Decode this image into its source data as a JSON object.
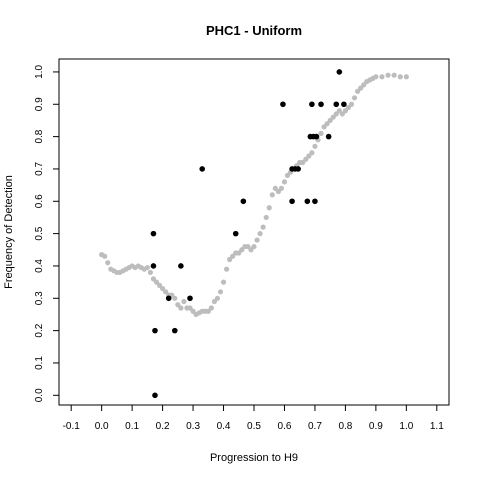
{
  "chart_data": {
    "type": "scatter",
    "title": "PHC1 - Uniform",
    "xlabel": "Progression to H9",
    "ylabel": "Frequency of Detection",
    "xlim": [
      -0.14,
      1.14
    ],
    "ylim": [
      -0.03,
      1.04
    ],
    "xticks": [
      "-0.1",
      "0.0",
      "0.1",
      "0.2",
      "0.3",
      "0.4",
      "0.5",
      "0.6",
      "0.7",
      "0.8",
      "0.9",
      "1.0",
      "1.1"
    ],
    "yticks": [
      "0.0",
      "0.1",
      "0.2",
      "0.3",
      "0.4",
      "0.5",
      "0.6",
      "0.7",
      "0.8",
      "0.9",
      "1.0"
    ],
    "grid": false,
    "series": [
      {
        "role": "smoothed",
        "color": "#bdbdbd",
        "points": [
          [
            0.0,
            0.435
          ],
          [
            0.01,
            0.43
          ],
          [
            0.02,
            0.41
          ],
          [
            0.03,
            0.39
          ],
          [
            0.04,
            0.385
          ],
          [
            0.05,
            0.38
          ],
          [
            0.06,
            0.38
          ],
          [
            0.07,
            0.385
          ],
          [
            0.08,
            0.39
          ],
          [
            0.09,
            0.395
          ],
          [
            0.1,
            0.4
          ],
          [
            0.11,
            0.395
          ],
          [
            0.12,
            0.4
          ],
          [
            0.13,
            0.395
          ],
          [
            0.14,
            0.39
          ],
          [
            0.15,
            0.395
          ],
          [
            0.16,
            0.38
          ],
          [
            0.17,
            0.36
          ],
          [
            0.18,
            0.35
          ],
          [
            0.19,
            0.34
          ],
          [
            0.2,
            0.33
          ],
          [
            0.21,
            0.32
          ],
          [
            0.22,
            0.31
          ],
          [
            0.23,
            0.31
          ],
          [
            0.24,
            0.3
          ],
          [
            0.25,
            0.28
          ],
          [
            0.26,
            0.27
          ],
          [
            0.27,
            0.29
          ],
          [
            0.28,
            0.27
          ],
          [
            0.29,
            0.27
          ],
          [
            0.3,
            0.26
          ],
          [
            0.31,
            0.25
          ],
          [
            0.32,
            0.255
          ],
          [
            0.33,
            0.26
          ],
          [
            0.34,
            0.26
          ],
          [
            0.35,
            0.26
          ],
          [
            0.36,
            0.27
          ],
          [
            0.37,
            0.29
          ],
          [
            0.38,
            0.3
          ],
          [
            0.39,
            0.32
          ],
          [
            0.4,
            0.35
          ],
          [
            0.41,
            0.39
          ],
          [
            0.42,
            0.42
          ],
          [
            0.43,
            0.43
          ],
          [
            0.44,
            0.44
          ],
          [
            0.45,
            0.44
          ],
          [
            0.46,
            0.45
          ],
          [
            0.47,
            0.46
          ],
          [
            0.48,
            0.46
          ],
          [
            0.49,
            0.45
          ],
          [
            0.5,
            0.46
          ],
          [
            0.51,
            0.48
          ],
          [
            0.52,
            0.5
          ],
          [
            0.53,
            0.52
          ],
          [
            0.54,
            0.55
          ],
          [
            0.55,
            0.58
          ],
          [
            0.56,
            0.62
          ],
          [
            0.57,
            0.64
          ],
          [
            0.58,
            0.63
          ],
          [
            0.59,
            0.64
          ],
          [
            0.6,
            0.66
          ],
          [
            0.61,
            0.68
          ],
          [
            0.62,
            0.69
          ],
          [
            0.63,
            0.7
          ],
          [
            0.64,
            0.71
          ],
          [
            0.65,
            0.72
          ],
          [
            0.66,
            0.72
          ],
          [
            0.67,
            0.73
          ],
          [
            0.68,
            0.74
          ],
          [
            0.69,
            0.75
          ],
          [
            0.7,
            0.77
          ],
          [
            0.71,
            0.79
          ],
          [
            0.72,
            0.81
          ],
          [
            0.73,
            0.83
          ],
          [
            0.74,
            0.84
          ],
          [
            0.75,
            0.85
          ],
          [
            0.76,
            0.86
          ],
          [
            0.77,
            0.87
          ],
          [
            0.78,
            0.88
          ],
          [
            0.79,
            0.87
          ],
          [
            0.8,
            0.88
          ],
          [
            0.81,
            0.89
          ],
          [
            0.82,
            0.9
          ],
          [
            0.83,
            0.92
          ],
          [
            0.84,
            0.94
          ],
          [
            0.85,
            0.95
          ],
          [
            0.86,
            0.96
          ],
          [
            0.87,
            0.97
          ],
          [
            0.88,
            0.975
          ],
          [
            0.89,
            0.98
          ],
          [
            0.9,
            0.985
          ],
          [
            0.92,
            0.985
          ],
          [
            0.94,
            0.99
          ],
          [
            0.96,
            0.99
          ],
          [
            0.98,
            0.985
          ],
          [
            1.0,
            0.985
          ]
        ]
      },
      {
        "role": "observed",
        "color": "#000000",
        "points": [
          [
            0.17,
            0.5
          ],
          [
            0.17,
            0.4
          ],
          [
            0.175,
            0.2
          ],
          [
            0.175,
            0.0
          ],
          [
            0.22,
            0.3
          ],
          [
            0.24,
            0.2
          ],
          [
            0.26,
            0.4
          ],
          [
            0.29,
            0.3
          ],
          [
            0.33,
            0.7
          ],
          [
            0.44,
            0.5
          ],
          [
            0.465,
            0.6
          ],
          [
            0.595,
            0.9
          ],
          [
            0.625,
            0.6
          ],
          [
            0.625,
            0.7
          ],
          [
            0.635,
            0.7
          ],
          [
            0.645,
            0.7
          ],
          [
            0.675,
            0.6
          ],
          [
            0.685,
            0.8
          ],
          [
            0.69,
            0.9
          ],
          [
            0.695,
            0.8
          ],
          [
            0.7,
            0.6
          ],
          [
            0.705,
            0.8
          ],
          [
            0.72,
            0.9
          ],
          [
            0.745,
            0.8
          ],
          [
            0.77,
            0.9
          ],
          [
            0.78,
            1.0
          ],
          [
            0.795,
            0.9
          ]
        ]
      }
    ]
  }
}
